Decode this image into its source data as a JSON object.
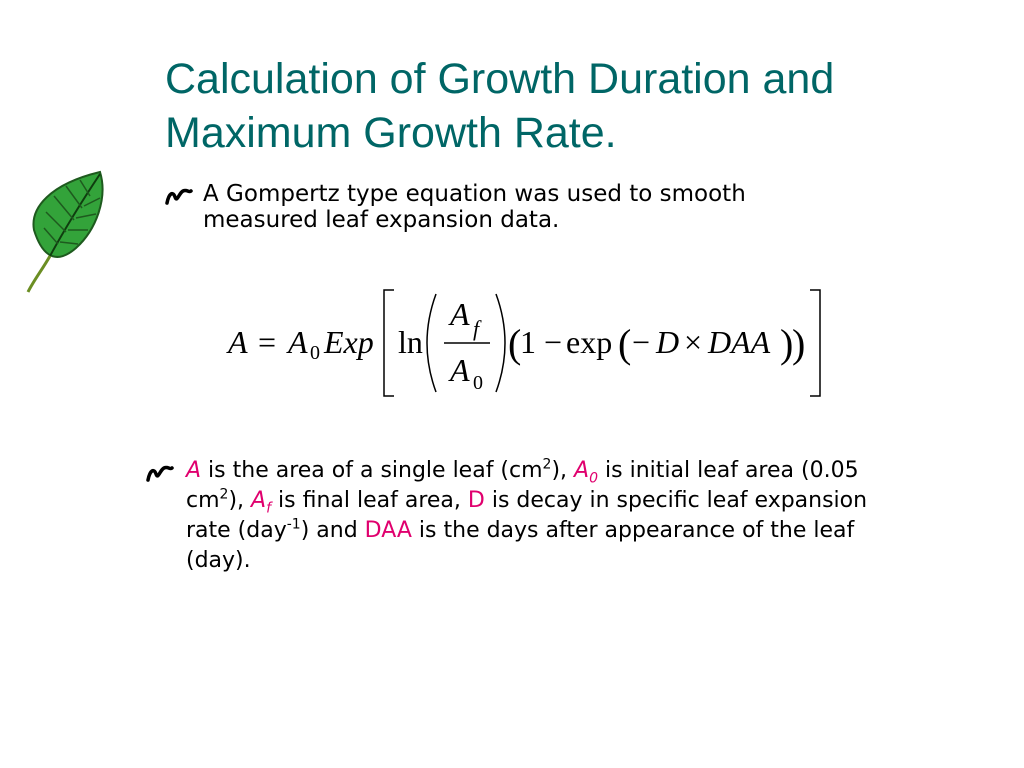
{
  "slide": {
    "title": "Calculation of Growth Duration and Maximum Growth Rate.",
    "bullet1": "A Gompertz type equation was used to smooth measured leaf expansion data.",
    "equation": {
      "lhs": "A",
      "equals": "=",
      "a0_main": "A",
      "a0_sub": "0",
      "exp_fn": "Exp",
      "ln_fn": "ln",
      "num_main": "A",
      "num_sub": "f",
      "den_main": "A",
      "den_sub": "0",
      "one_minus": "1 −",
      "exp_lower": "exp",
      "minus": "−",
      "D": "D",
      "times": "×",
      "DAA": "DAA"
    },
    "bullet2": {
      "v_A": "A",
      "t1": " is the area of a single leaf (cm",
      "s1": "2",
      "t2": "), ",
      "v_A0_main": "A",
      "v_A0_sub": "0",
      "t3": " is initial leaf area (0.05 cm",
      "s2": "2",
      "t4": "), ",
      "v_Af_main": "A",
      "v_Af_sub": "f",
      "t5": " is final leaf area, ",
      "v_D": "D",
      "t6": " is decay in specific leaf expansion rate (day",
      "s3": "-1",
      "t7": ") and ",
      "v_DAA": "DAA",
      "t8": " is the days after appearance of the leaf (day)."
    },
    "colors": {
      "title": "#006666",
      "variable_highlight": "#e0006e",
      "leaf_fill": "#33a33a",
      "leaf_outline": "#1e5a1e"
    },
    "icons": [
      "leaf-icon",
      "bullet-squiggle-icon"
    ]
  }
}
